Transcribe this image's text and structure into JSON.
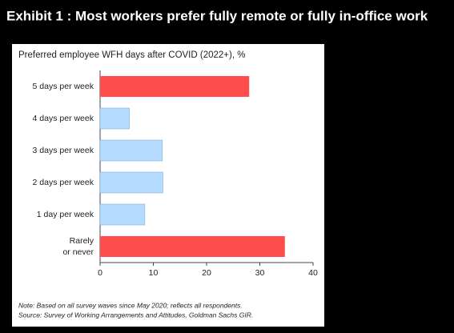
{
  "chart_data": {
    "type": "barh",
    "title": "Exhibit 1 : Most workers prefer fully remote or fully in-office work",
    "subtitle": "Preferred employee WFH days after COVID (2022+), %",
    "categories": [
      "5 days per week",
      "4 days per week",
      "3 days per week",
      "2 days per week",
      "1 day per week",
      "Rarely\nor never"
    ],
    "values": [
      28,
      5.5,
      11.7,
      11.8,
      8.4,
      34.7
    ],
    "colors": [
      "#ff4d4d",
      "#b5dcff",
      "#b5dcff",
      "#b5dcff",
      "#b5dcff",
      "#ff4d4d"
    ],
    "xlim": [
      0,
      40
    ],
    "xticks": [
      0,
      10,
      20,
      30,
      40
    ],
    "note": "Note: Based on all survey waves since May 2020; reflects all respondents.",
    "source": "Source: Survey of Working Arrangements and Attitudes, Goldman Sachs GIR."
  }
}
